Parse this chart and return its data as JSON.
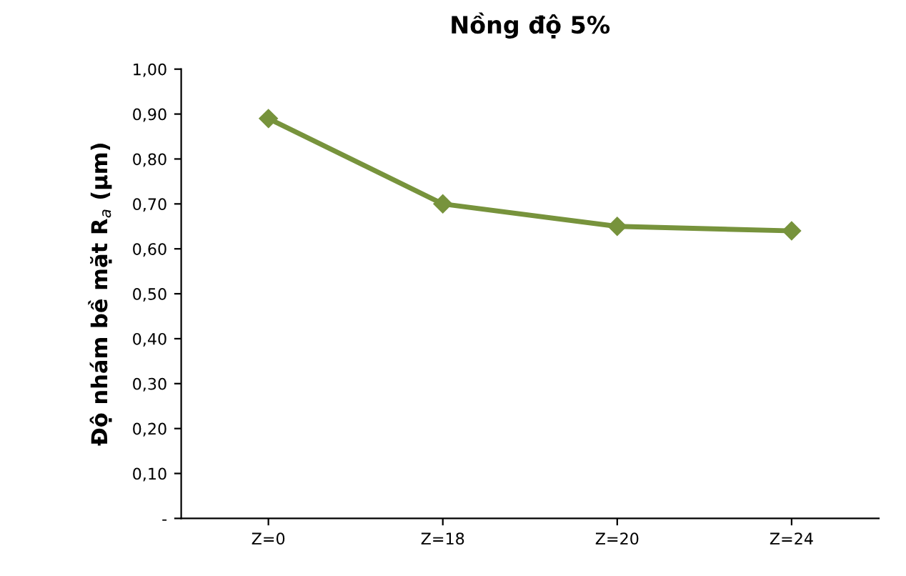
{
  "chart_data": {
    "type": "line",
    "title": "Nồng độ 5%",
    "ylabel": "Độ nhám bề mặt R$_{a}$ (μm)",
    "categories": [
      "Z=0",
      "Z=18",
      "Z=20",
      "Z=24"
    ],
    "series": [
      {
        "color": "#77933c",
        "values": [
          0.89,
          0.7,
          0.65,
          0.64
        ]
      }
    ],
    "ylim": [
      0,
      1
    ],
    "yticks": [
      {
        "value": 0,
        "label": "-"
      },
      {
        "value": 0.1,
        "label": "0,10"
      },
      {
        "value": 0.2,
        "label": "0,20"
      },
      {
        "value": 0.3,
        "label": "0,30"
      },
      {
        "value": 0.4,
        "label": "0,40"
      },
      {
        "value": 0.5,
        "label": "0,50"
      },
      {
        "value": 0.6,
        "label": "0,60"
      },
      {
        "value": 0.7,
        "label": "0,70"
      },
      {
        "value": 0.8,
        "label": "0,80"
      },
      {
        "value": 0.9,
        "label": "0,90"
      },
      {
        "value": 1.0,
        "label": "1,00"
      }
    ],
    "marker": "diamond",
    "line_style": "solid",
    "grid": false,
    "legend": false
  }
}
